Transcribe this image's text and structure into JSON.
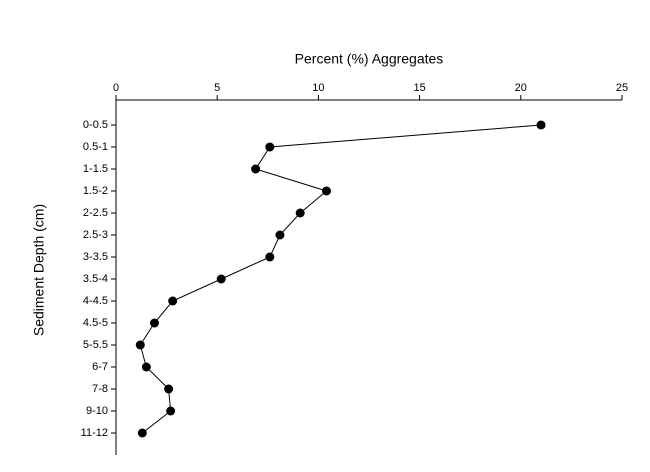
{
  "chart_data": {
    "type": "line",
    "x_label": "Percent (%) Aggregates",
    "y_label": "Sediment Depth (cm)",
    "categories": [
      "0-0.5",
      "0.5-1",
      "1-1.5",
      "1.5-2",
      "2-2.5",
      "2.5-3",
      "3-3.5",
      "3.5-4",
      "4-4.5",
      "4.5-5",
      "5-5.5",
      "6-7",
      "7-8",
      "9-10",
      "11-12"
    ],
    "values": [
      21,
      7.6,
      6.9,
      10.4,
      9.1,
      8.1,
      7.6,
      5.2,
      2.8,
      1.9,
      1.2,
      1.5,
      2.6,
      2.7,
      1.3
    ],
    "color": "#000000",
    "xlim": [
      0,
      25
    ],
    "xticks": [
      0,
      5,
      10,
      15,
      20,
      25
    ]
  }
}
